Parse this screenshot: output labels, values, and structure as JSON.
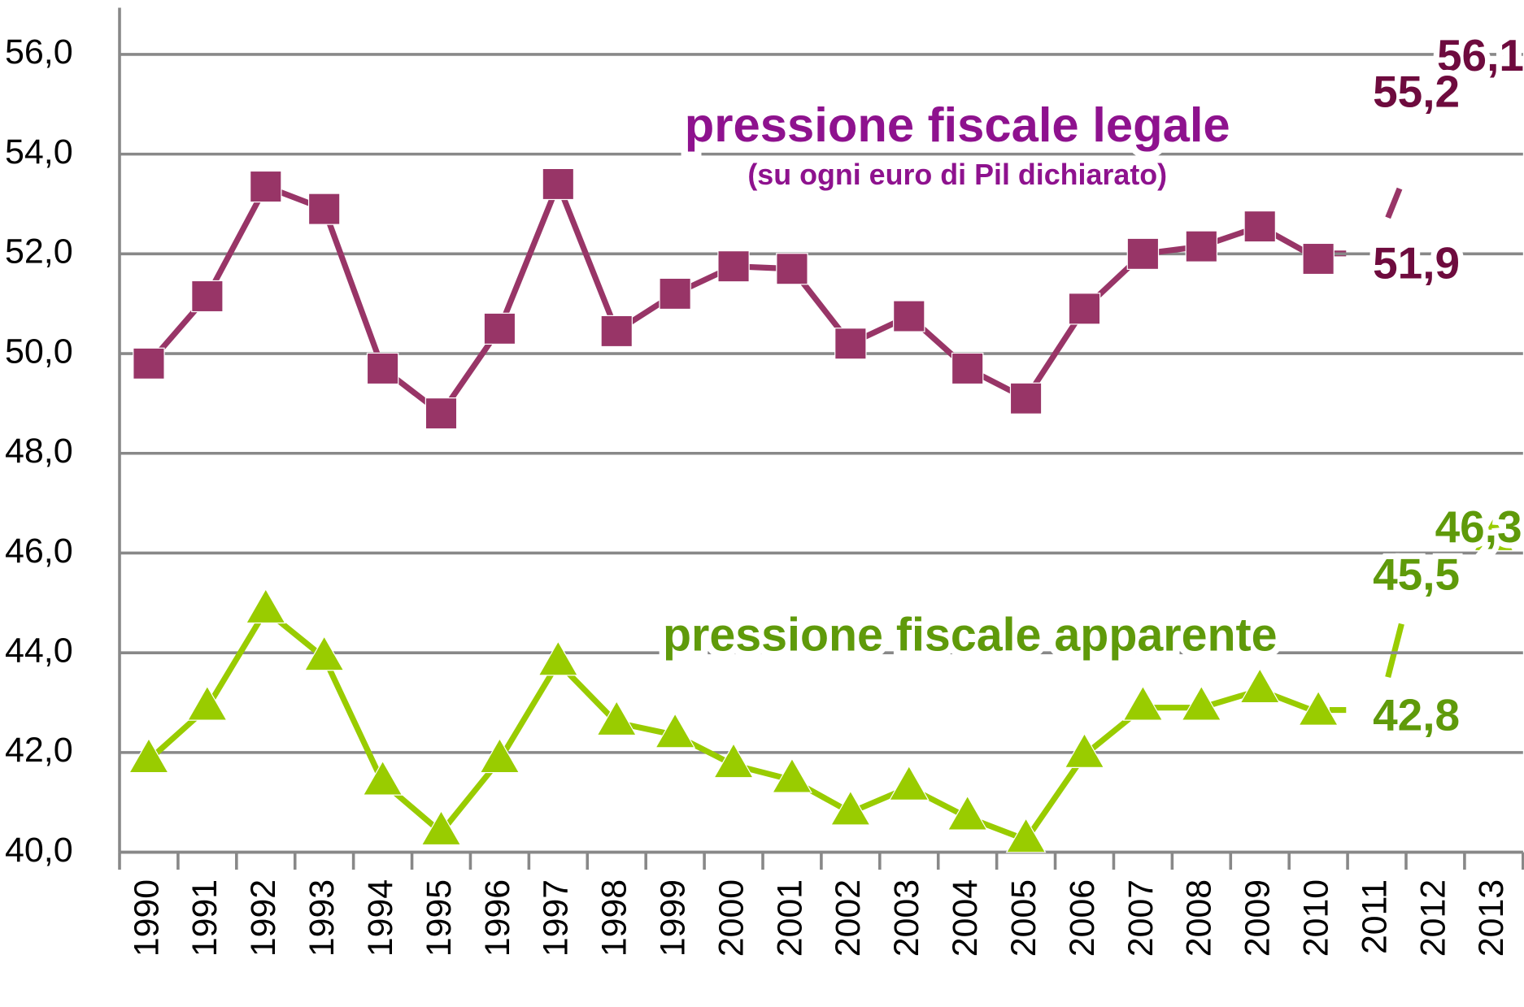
{
  "chart_data": {
    "type": "line",
    "title": "pressione fiscale legale",
    "subtitle": "(su ogni euro di Pil dichiarato)",
    "series_title_2": "pressione fiscale apparente",
    "categories": [
      "1990",
      "1991",
      "1992",
      "1993",
      "1994",
      "1995",
      "1996",
      "1997",
      "1998",
      "1999",
      "2000",
      "2001",
      "2002",
      "2003",
      "2004",
      "2005",
      "2006",
      "2007",
      "2008",
      "2009",
      "2010",
      "2011",
      "2012",
      "2013"
    ],
    "series": [
      {
        "name": "pressione fiscale legale",
        "color": "#983567",
        "marker": "square",
        "values": [
          49.8,
          51.15,
          53.35,
          52.9,
          49.7,
          48.8,
          50.5,
          53.4,
          50.45,
          51.2,
          51.75,
          51.7,
          50.2,
          50.75,
          49.7,
          49.1,
          50.9,
          52.0,
          52.15,
          52.55,
          51.9,
          null,
          null,
          null
        ]
      },
      {
        "name": "pressione fiscale apparente",
        "color": "#99cc00",
        "marker": "triangle",
        "values": [
          41.85,
          42.9,
          44.85,
          43.9,
          41.4,
          40.4,
          41.85,
          43.8,
          42.6,
          42.35,
          41.75,
          41.45,
          40.8,
          41.3,
          40.7,
          40.25,
          41.95,
          42.9,
          42.9,
          43.25,
          42.8,
          null,
          null,
          46.3
        ]
      }
    ],
    "annotations": [
      {
        "label": "56,1",
        "value": 56.1,
        "color": "#6e0b3e"
      },
      {
        "label": "55,2",
        "value": 55.2,
        "color": "#6e0b3e"
      },
      {
        "label": "51,9",
        "value": 51.9,
        "color": "#6e0b3e"
      },
      {
        "label": "46,3",
        "value": 46.3,
        "color": "#5f9a0a"
      },
      {
        "label": "45,5",
        "value": 45.5,
        "color": "#5f9a0a"
      },
      {
        "label": "42,8",
        "value": 42.8,
        "color": "#5f9a0a"
      }
    ],
    "ylim": [
      40,
      56.8
    ],
    "yticks": [
      {
        "value": 40,
        "label": "40,0"
      },
      {
        "value": 42,
        "label": "42,0"
      },
      {
        "value": 44,
        "label": "44,0"
      },
      {
        "value": 46,
        "label": "46,0"
      },
      {
        "value": 48,
        "label": "48,0"
      },
      {
        "value": 50,
        "label": "50,0"
      },
      {
        "value": 52,
        "label": "52,0"
      },
      {
        "value": 54,
        "label": "54,0"
      },
      {
        "value": 56,
        "label": "56,0"
      }
    ],
    "grid": true
  }
}
